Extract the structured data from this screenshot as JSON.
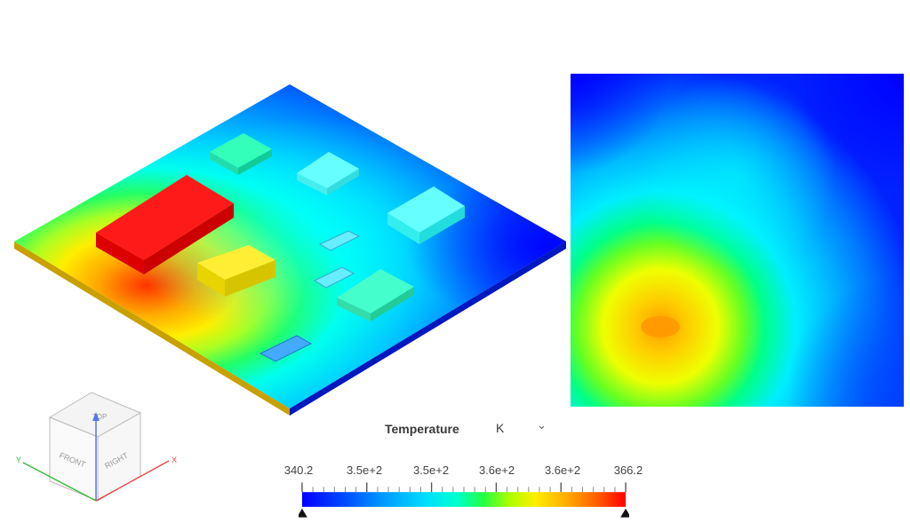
{
  "viewport": {
    "colormap": [
      "#0000ff",
      "#0066ff",
      "#00ccff",
      "#00ffcc",
      "#00ff33",
      "#ccff00",
      "#ffcc00",
      "#ff6600",
      "#ff0000"
    ]
  },
  "legend": {
    "title": "Temperature",
    "unit": "K",
    "min_label": "340.2",
    "max_label": "366.2",
    "ticks": [
      "3.5e+2",
      "3.5e+2",
      "3.6e+2",
      "3.6e+2"
    ],
    "min_value": 340.2,
    "max_value": 366.2
  },
  "nav_cube": {
    "top_label": "TOP",
    "front_label": "FRONT",
    "right_label": "RIGHT",
    "x_axis": "X",
    "y_axis": "Y"
  }
}
